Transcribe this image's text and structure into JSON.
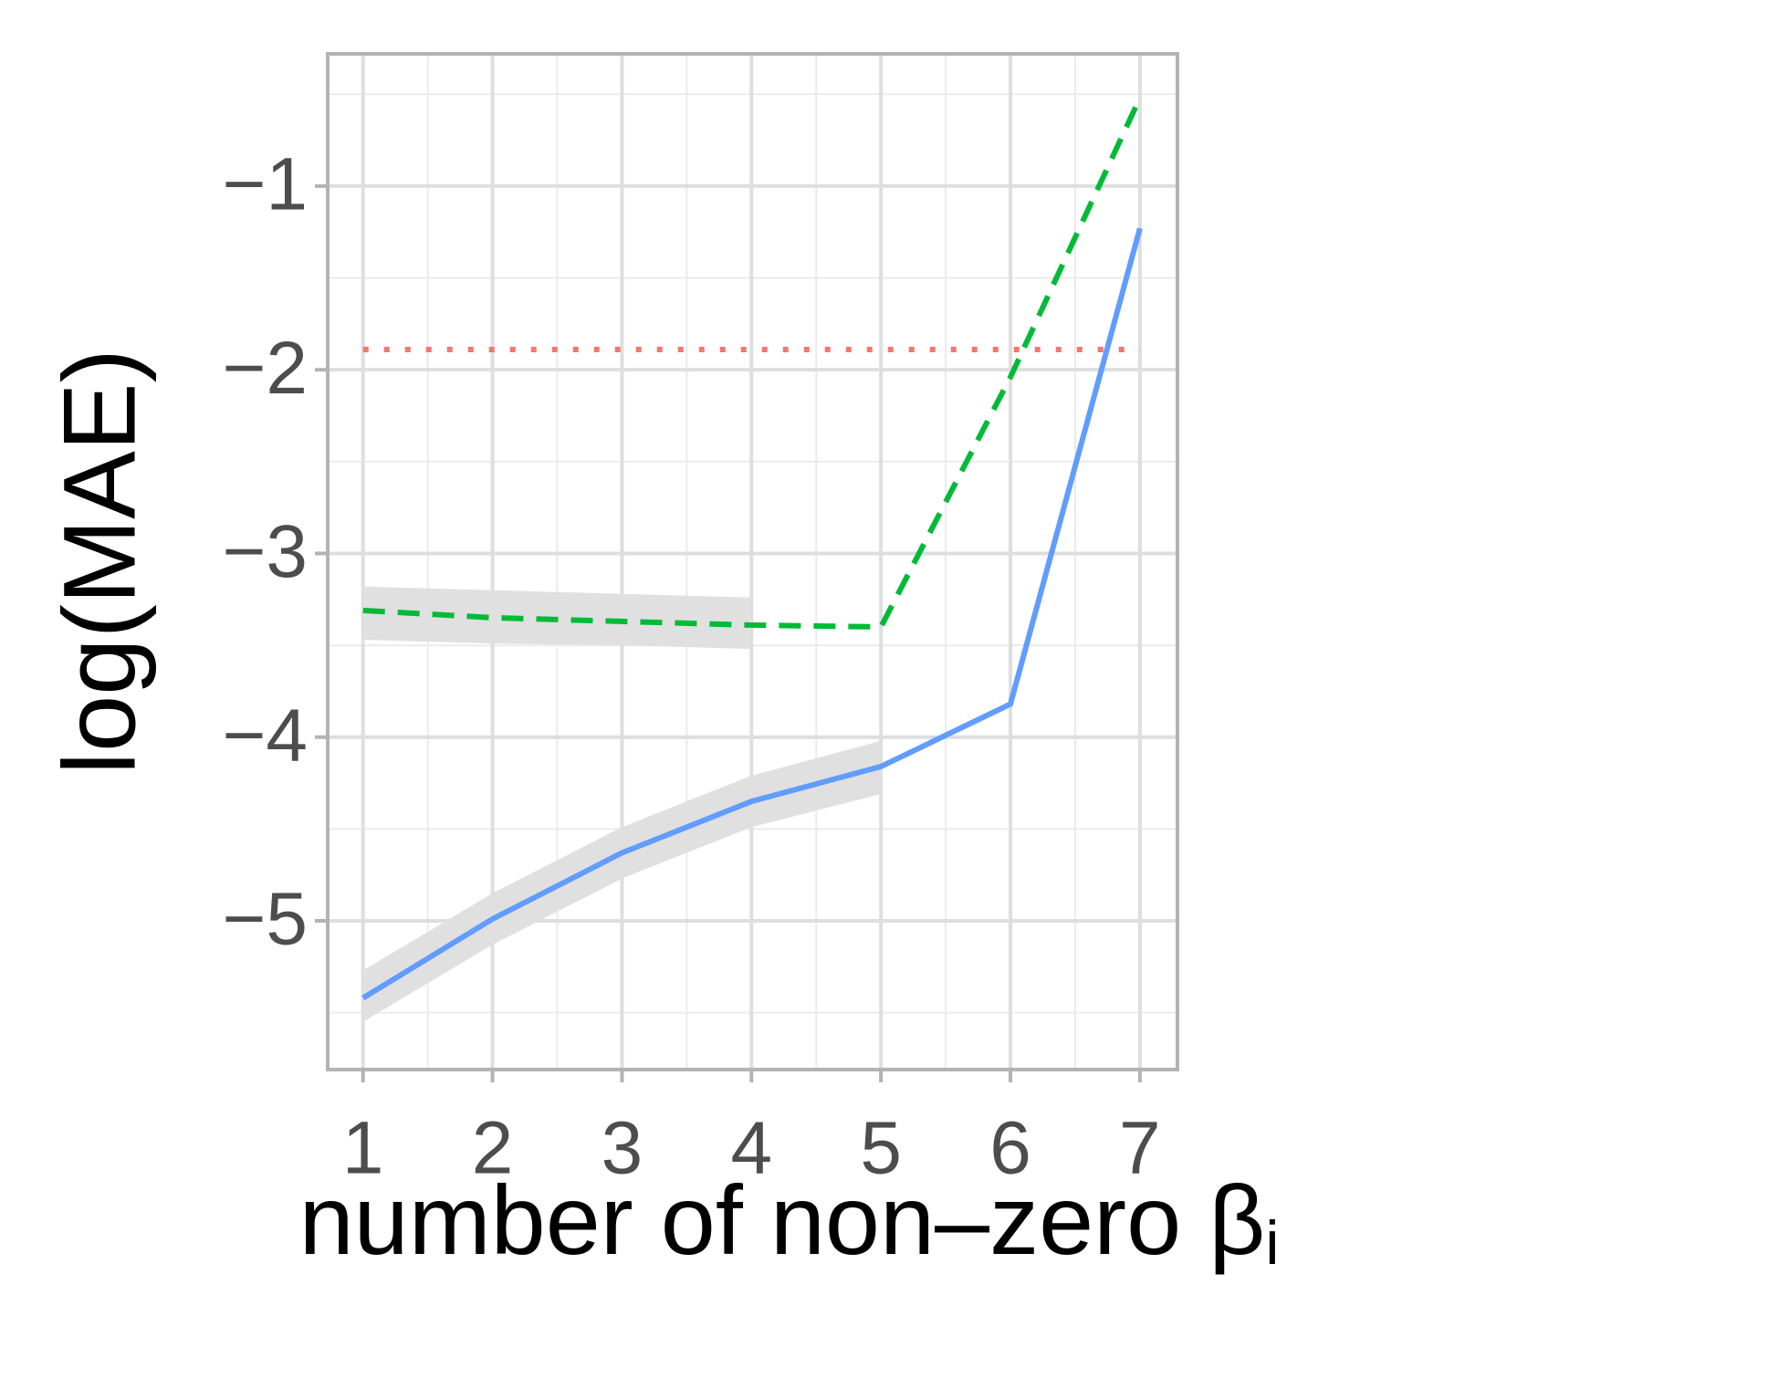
{
  "chart_data": {
    "type": "line",
    "xlabel": "number of non–zero β",
    "xlabel_sub": "i",
    "ylabel": "log(MAE)",
    "x": [
      1,
      2,
      3,
      4,
      5,
      6,
      7
    ],
    "xlim": [
      0.727,
      7.29
    ],
    "ylim": [
      -5.81,
      -0.28
    ],
    "xticks": [
      1,
      2,
      3,
      4,
      5,
      6,
      7
    ],
    "yticks": [
      {
        "value": -5,
        "label": "−5"
      },
      {
        "value": -4,
        "label": "−4"
      },
      {
        "value": -3,
        "label": "−3"
      },
      {
        "value": -2,
        "label": "−2"
      },
      {
        "value": -1,
        "label": "−1"
      }
    ],
    "grid": true,
    "minor_grid": true,
    "ribbons": [
      {
        "color": "#e0e0e0",
        "lower": [
          -3.47,
          -3.49,
          -3.5,
          -3.52,
          null,
          null,
          null
        ],
        "upper": [
          -3.18,
          -3.2,
          -3.22,
          -3.24,
          null,
          null,
          null
        ]
      },
      {
        "color": "#e0e0e0",
        "lower": [
          -5.55,
          -5.13,
          -4.77,
          -4.49,
          -4.31,
          null,
          null
        ],
        "upper": [
          -5.27,
          -4.85,
          -4.49,
          -4.21,
          -4.02,
          null,
          null
        ]
      }
    ],
    "series": [
      {
        "color": "#f8766d",
        "dash": "dotted",
        "values": [
          -1.89,
          -1.89,
          -1.89,
          -1.89,
          -1.89,
          -1.89,
          -1.89
        ]
      },
      {
        "color": "#00ba38",
        "dash": "dashed",
        "values": [
          -3.31,
          -3.35,
          -3.37,
          -3.39,
          -3.4,
          -2.04,
          -0.52
        ]
      },
      {
        "color": "#619cff",
        "dash": "solid",
        "values": [
          -5.42,
          -4.99,
          -4.63,
          -4.35,
          -4.16,
          -3.82,
          -1.23
        ]
      }
    ]
  }
}
